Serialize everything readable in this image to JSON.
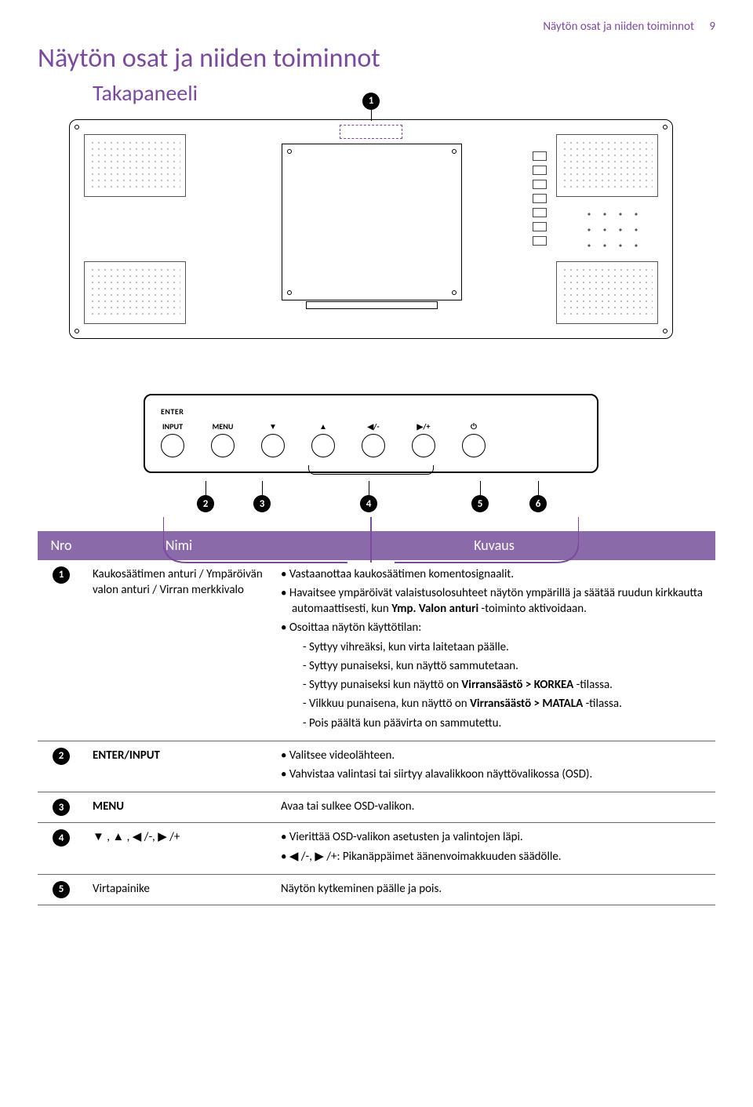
{
  "header": {
    "running_title": "Näytön osat ja niiden toiminnot",
    "page_number": "9"
  },
  "title": "Näytön osat ja niiden toiminnot",
  "subtitle": "Takapaneeli",
  "panel": {
    "enter_label": "ENTER",
    "buttons": [
      "INPUT",
      "MENU",
      "▼",
      "▲",
      "◀/-",
      "▶/+",
      "⏻"
    ]
  },
  "callout_numbers": [
    "1",
    "2",
    "3",
    "4",
    "5",
    "6"
  ],
  "table": {
    "headers": {
      "nro": "Nro",
      "nimi": "Nimi",
      "kuvaus": "Kuvaus"
    },
    "rows": [
      {
        "num": "1",
        "name": "Kaukosäätimen anturi / Ympäröivän valon anturi / Virran merkkivalo",
        "desc_items": [
          {
            "type": "li",
            "text": "Vastaanottaa kaukosäätimen komentosignaalit."
          },
          {
            "type": "li",
            "html": "Havaitsee ympäröivät valaistusolosuhteet näytön ympärillä ja säätää ruudun kirkkautta automaattisesti, kun <b>Ymp. Valon anturi</b> -toiminto aktivoidaan."
          },
          {
            "type": "li",
            "text": "Osoittaa näytön käyttötilan:",
            "sub": [
              "Syttyy vihreäksi, kun virta laitetaan päälle.",
              "Syttyy punaiseksi, kun näyttö sammutetaan.",
              "Syttyy punaiseksi kun näyttö on <b>Virransäästö > KORKEA</b> -tilassa.",
              "Vilkkuu punaisena, kun näyttö on <b>Virransäästö > MATALA</b> -tilassa.",
              "Pois päältä kun päävirta on sammutettu."
            ]
          }
        ]
      },
      {
        "num": "2",
        "name": "ENTER/INPUT",
        "name_bold": true,
        "desc_items": [
          {
            "type": "li",
            "text": "Valitsee videolähteen."
          },
          {
            "type": "li",
            "text": "Vahvistaa valintasi tai siirtyy alavalikkoon näyttövalikossa (OSD)."
          }
        ]
      },
      {
        "num": "3",
        "name": "MENU",
        "name_bold": true,
        "desc_plain": "Avaa tai sulkee OSD-valikon."
      },
      {
        "num": "4",
        "name_html": "▼ , ▲ , ◀ /-, ▶ /+",
        "desc_items": [
          {
            "type": "li",
            "text": "Vierittää OSD-valikon asetusten ja valintojen läpi."
          },
          {
            "type": "li",
            "html": "◀ /-, ▶ /+: Pikanäppäimet äänenvoimakkuuden säädölle."
          }
        ]
      },
      {
        "num": "5",
        "name": "Virtapainike",
        "desc_plain": "Näytön kytkeminen päälle ja pois."
      }
    ]
  },
  "colors": {
    "accent": "#7b4a9e",
    "th_bg": "#8a6aa8",
    "text": "#000000",
    "bg": "#ffffff"
  }
}
